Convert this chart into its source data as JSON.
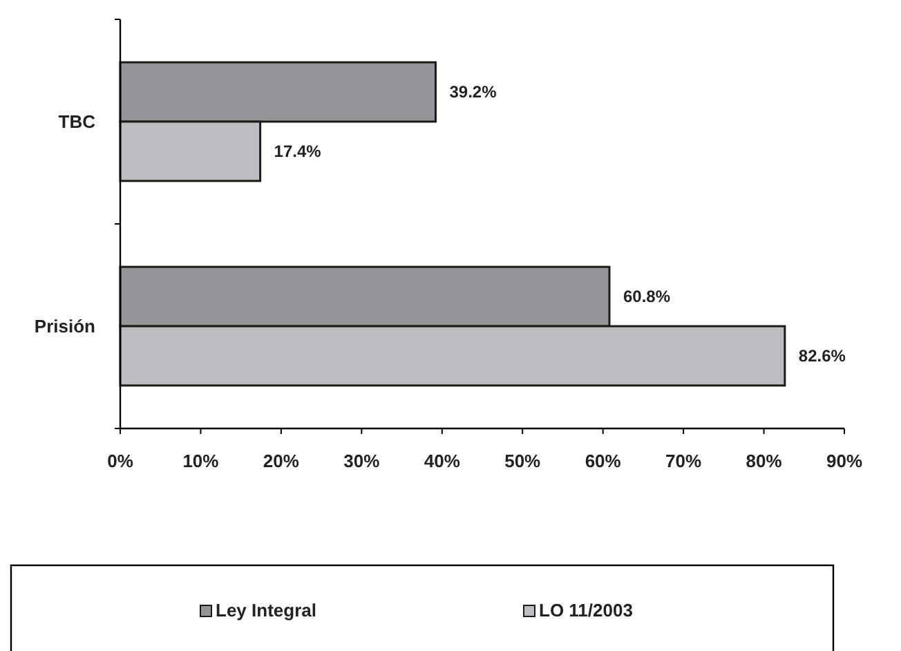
{
  "chart_data": {
    "type": "bar",
    "orientation": "horizontal",
    "categories": [
      "TBC",
      "Prisión"
    ],
    "series": [
      {
        "name": "Ley Integral",
        "color": "#939598",
        "values": [
          39.2,
          60.8
        ],
        "value_labels": [
          "39.2%",
          "60.8%"
        ]
      },
      {
        "name": "LO 11/2003",
        "color": "#bcbdc0",
        "values": [
          17.4,
          82.6
        ],
        "value_labels": [
          "17.4%",
          "82.6%"
        ]
      }
    ],
    "xlim": [
      0,
      90
    ],
    "xticks": [
      {
        "value": 0,
        "label": "0%"
      },
      {
        "value": 10,
        "label": "10%"
      },
      {
        "value": 20,
        "label": "20%"
      },
      {
        "value": 30,
        "label": "30%"
      },
      {
        "value": 40,
        "label": "40%"
      },
      {
        "value": 50,
        "label": "50%"
      },
      {
        "value": 60,
        "label": "60%"
      },
      {
        "value": 70,
        "label": "70%"
      },
      {
        "value": 80,
        "label": "80%"
      },
      {
        "value": 90,
        "label": "90%"
      }
    ],
    "grid": false,
    "legend": "bottom"
  }
}
